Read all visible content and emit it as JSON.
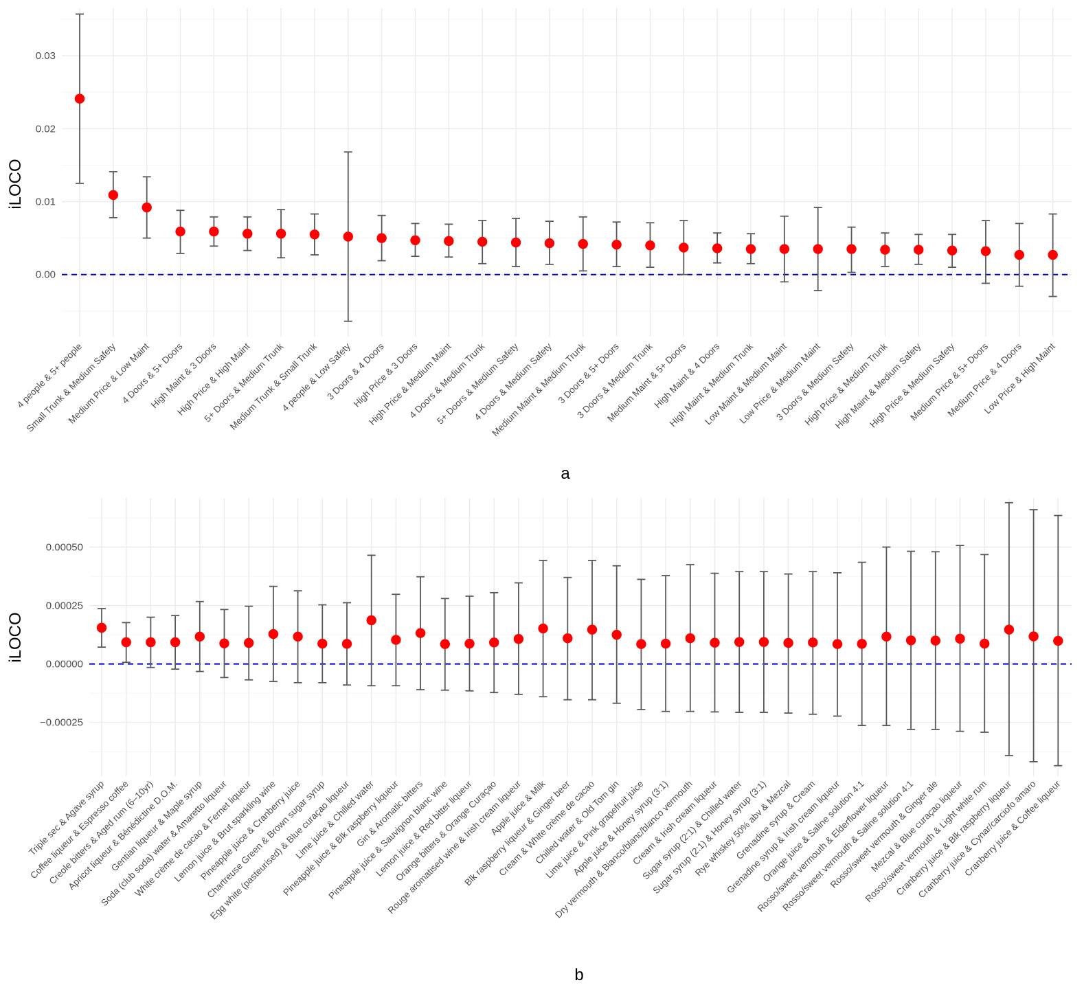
{
  "colors": {
    "point": "#ff0000",
    "errorbar": "#595959",
    "reference_line": "#0000cc",
    "grid": "#ebebeb"
  },
  "chart_data": [
    {
      "type": "scatter",
      "caption": "a",
      "ylabel": "iLOCO",
      "xlabel": "",
      "ylim": [
        -0.0085,
        0.0365
      ],
      "yticks": [
        0.0,
        0.01,
        0.02,
        0.03
      ],
      "ytick_labels": [
        "0.00",
        "0.01",
        "0.02",
        "0.03"
      ],
      "reference_line": 0,
      "grid": true,
      "legend": "none",
      "categories": [
        "4 people & 5+ people",
        "Small Trunk & Medium Safety",
        "Medium Price & Low Maint",
        "4 Doors & 5+ Doors",
        "High Maint & 3 Doors",
        "High Price & High Maint",
        "5+ Doors & Medium Trunk",
        "Medium Trunk & Small Trunk",
        "4 people & Low Safety",
        "3 Doors & 4 Doors",
        "High Price & 3 Doors",
        "High Price & Medium Maint",
        "4 Doors & Medium Trunk",
        "5+ Doors & Medium Safety",
        "4 Doors & Medium Safety",
        "Medium Maint & Medium Trunk",
        "3 Doors & 5+ Doors",
        "3 Doors & Medium Trunk",
        "Medium Maint & 5+ Doors",
        "High Maint & 4 Doors",
        "High Maint & Medium Trunk",
        "Low Maint & Medium Maint",
        "Low Price & Medium Maint",
        "3 Doors & Medium Safety",
        "High Price & Medium Trunk",
        "High Maint & Medium Safety",
        "High Price & Medium Safety",
        "Medium Price & 5+ Doors",
        "Medium Price & 4 Doors",
        "Low Price & High Maint"
      ],
      "values": [
        0.0241,
        0.0109,
        0.0092,
        0.0059,
        0.0059,
        0.0056,
        0.0056,
        0.0055,
        0.0052,
        0.005,
        0.0047,
        0.0046,
        0.0045,
        0.0044,
        0.0043,
        0.0042,
        0.0041,
        0.004,
        0.0037,
        0.0036,
        0.0035,
        0.0035,
        0.0035,
        0.0035,
        0.0034,
        0.0034,
        0.0033,
        0.0032,
        0.0027,
        0.0027
      ],
      "lower": [
        0.0125,
        0.0078,
        0.005,
        0.0029,
        0.0039,
        0.0033,
        0.0023,
        0.0027,
        -0.0064,
        0.0019,
        0.0025,
        0.0024,
        0.0015,
        0.0011,
        0.0014,
        0.0005,
        0.0011,
        0.001,
        0.0,
        0.0016,
        0.0015,
        -0.001,
        -0.0022,
        0.0003,
        0.0011,
        0.0014,
        0.001,
        -0.0012,
        -0.0016,
        -0.003
      ],
      "upper": [
        0.0357,
        0.0141,
        0.0134,
        0.0088,
        0.0079,
        0.0079,
        0.0089,
        0.0083,
        0.0168,
        0.0081,
        0.007,
        0.0069,
        0.0074,
        0.0077,
        0.0073,
        0.0079,
        0.0072,
        0.0071,
        0.0074,
        0.0057,
        0.0056,
        0.008,
        0.0092,
        0.0065,
        0.0057,
        0.0055,
        0.0055,
        0.0074,
        0.007,
        0.0083
      ]
    },
    {
      "type": "scatter",
      "caption": "b",
      "ylabel": "iLOCO",
      "xlabel": "",
      "ylim": [
        -0.00048,
        0.00071
      ],
      "yticks": [
        -0.00025,
        0.0,
        0.00025,
        0.0005
      ],
      "ytick_labels": [
        "−0.00025",
        "0.00000",
        "0.00025",
        "0.00050"
      ],
      "reference_line": 0,
      "grid": true,
      "legend": "none",
      "categories": [
        "Triple sec & Agave syrup",
        "Coffee liqueur & Espresso coffee",
        "Creole bitters & Aged rum (6–10yr)",
        "Apricot liqueur & Bénédictine D.O.M.",
        "Gentian liqueur & Maple syrup",
        "Soda (club soda) water & Amaretto liqueur",
        "White crème de cacao & Fernet liqueur",
        "Lemon juice & Brut sparkling wine",
        "Pineapple juice & Cranberry juice",
        "Chartreuse Green & Brown sugar syrup",
        "Egg white (pasteurised) & Blue curaçao liqueur",
        "Lime juice & Chilled water",
        "Pineapple juice & Blk raspberry liqueur",
        "Gin & Aromatic bitters",
        "Pineapple juice & Sauvignon blanc wine",
        "Lemon juice & Red bitter liqueur",
        "Orange bitters & Orange Curaçao",
        "Rouge aromatised wine & Irish cream liqueur",
        "Apple juice & Milk",
        "Blk raspberry liqueur & Ginger beer",
        "Cream & White crème de cacao",
        "Chilled water & Old Tom gin",
        "Lime juice & Pink grapefruit juice",
        "Apple juice & Honey syrup (3:1)",
        "Dry vermouth & Bianco/blanc/blanco vermouth",
        "Cream & Irish cream liqueur",
        "Sugar syrup (2:1) & Chilled water",
        "Sugar syrup (2:1) & Honey syrup (3:1)",
        "Rye whiskey 50% abv & Mezcal",
        "Grenadine syrup & Cream",
        "Grenadine syrup & Irish cream liqueur",
        "Orange juice & Saline solution 4:1",
        "Rosso/sweet vermouth & Elderflower liqueur",
        "Rosso/sweet vermouth & Saline solution 4:1",
        "Rosso/sweet vermouth & Ginger ale",
        "Mezcal & Blue curaçao liqueur",
        "Rosso/sweet vermouth & Light white rum",
        "Cranberry juice & Blk raspberry liqueur",
        "Cranberry juice & Cynar/carciofo amaro",
        "Cranberry juice & Coffee liqueur"
      ],
      "values": [
        0.000155,
        9.3e-05,
        9.3e-05,
        9.3e-05,
        0.000117,
        8.8e-05,
        9e-05,
        0.000128,
        0.000117,
        8.7e-05,
        8.6e-05,
        0.000187,
        0.000103,
        0.000132,
        8.5e-05,
        8.7e-05,
        9.2e-05,
        0.000107,
        0.000152,
        0.00011,
        0.000147,
        0.000125,
        8.5e-05,
        8.7e-05,
        0.00011,
        9.1e-05,
        9.4e-05,
        9.4e-05,
        9e-05,
        9.2e-05,
        8.5e-05,
        8.6e-05,
        0.000117,
        0.000101,
        0.0001,
        0.000108,
        8.7e-05,
        0.000147,
        0.000118,
        9.9e-05
      ],
      "lower": [
        7.2e-05,
        7e-06,
        -1.5e-05,
        -2.2e-05,
        -3.2e-05,
        -5.8e-05,
        -6.8e-05,
        -7.5e-05,
        -8e-05,
        -8e-05,
        -9e-05,
        -9.3e-05,
        -9.3e-05,
        -0.00011,
        -0.000112,
        -0.000115,
        -0.000122,
        -0.00013,
        -0.00014,
        -0.000153,
        -0.000153,
        -0.000168,
        -0.000195,
        -0.000203,
        -0.000203,
        -0.000205,
        -0.000207,
        -0.000207,
        -0.00021,
        -0.000215,
        -0.000223,
        -0.000263,
        -0.000263,
        -0.00028,
        -0.00028,
        -0.000288,
        -0.000292,
        -0.000392,
        -0.000418,
        -0.000435
      ],
      "upper": [
        0.000237,
        0.000177,
        0.0002,
        0.000207,
        0.000267,
        0.000233,
        0.000247,
        0.000332,
        0.000313,
        0.000253,
        0.000262,
        0.000465,
        0.000298,
        0.000373,
        0.00028,
        0.00029,
        0.000305,
        0.000347,
        0.000443,
        0.00037,
        0.000443,
        0.00042,
        0.000362,
        0.000378,
        0.000425,
        0.000388,
        0.000395,
        0.000395,
        0.000385,
        0.000395,
        0.00039,
        0.000435,
        0.0005,
        0.000482,
        0.00048,
        0.000507,
        0.000468,
        0.00069,
        0.00066,
        0.000635
      ]
    }
  ]
}
